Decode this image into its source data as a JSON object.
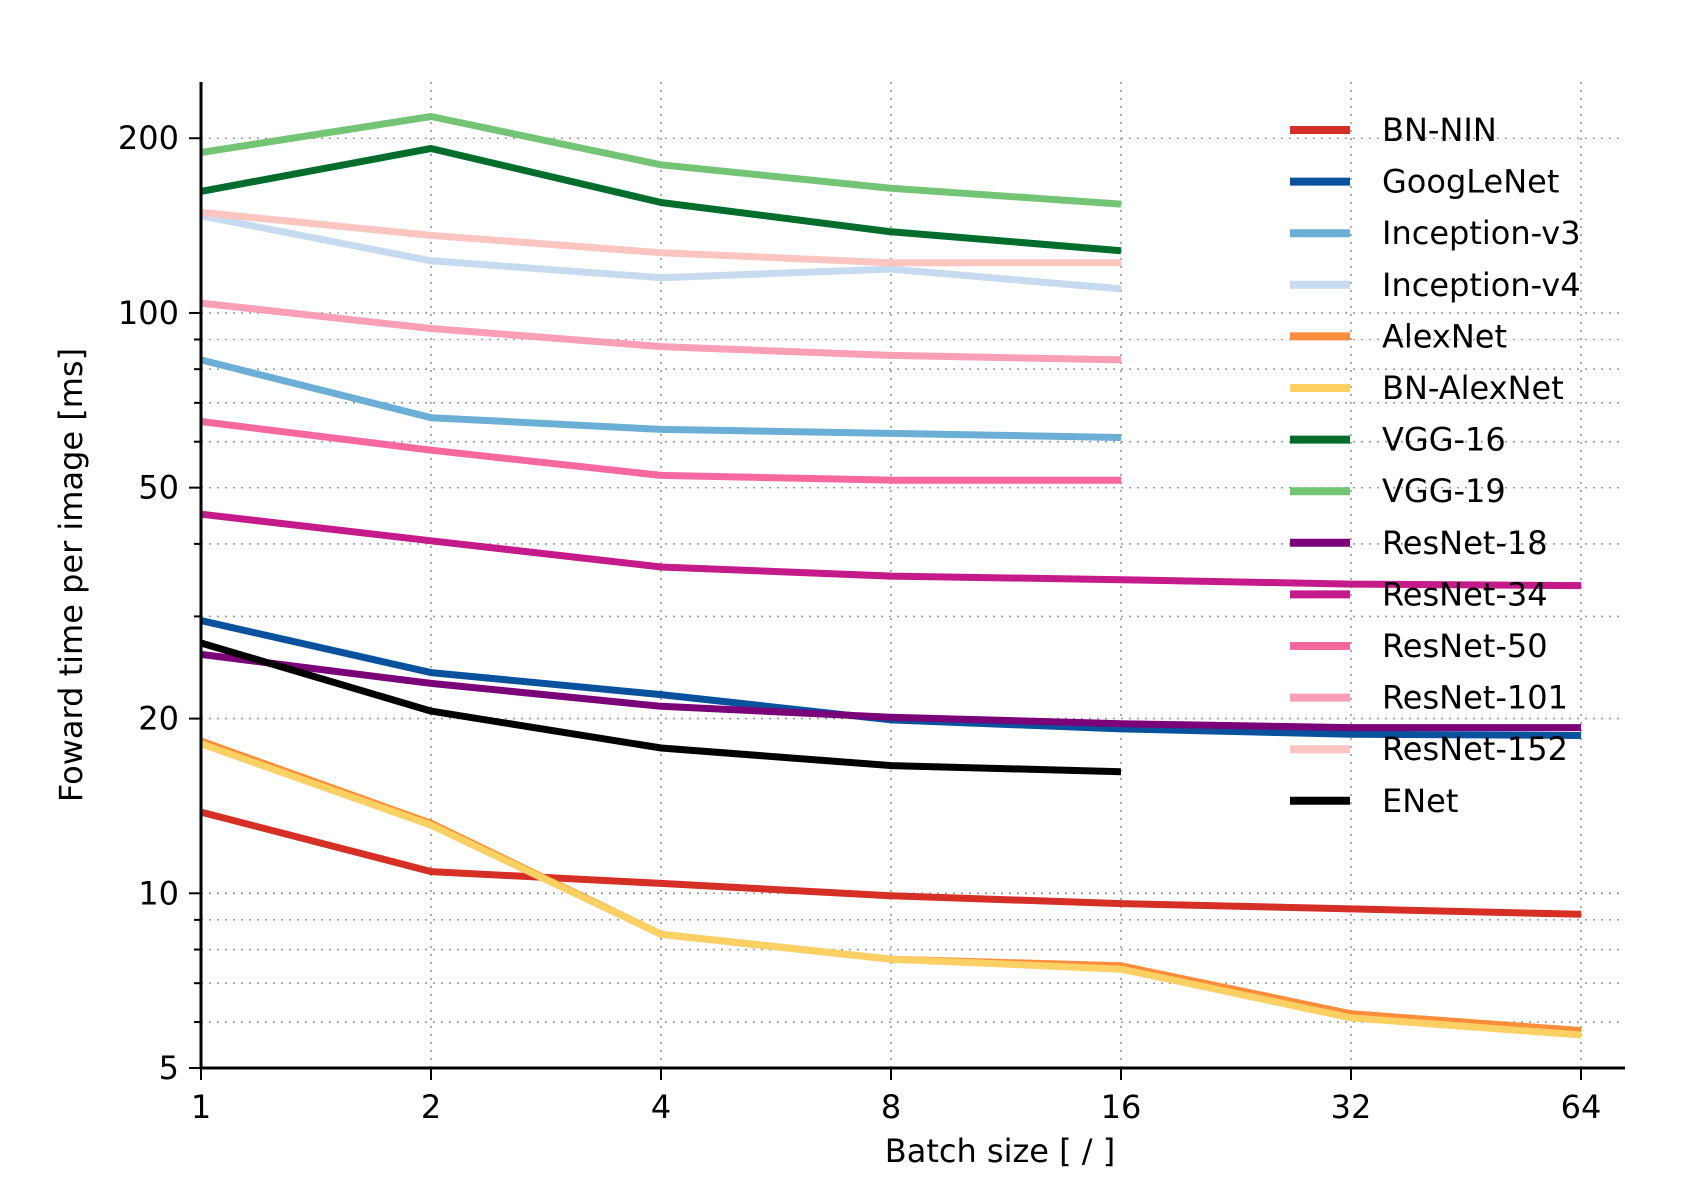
{
  "chart_data": {
    "type": "line",
    "title": "",
    "xlabel": "Batch size [ / ]",
    "ylabel": "Foward time per image [ms]",
    "x_scale": "log2",
    "y_scale": "log",
    "xlim": [
      1,
      90
    ],
    "ylim": [
      5,
      250
    ],
    "x_ticks": [
      1,
      2,
      4,
      8,
      16,
      32,
      64
    ],
    "x_tick_labels": [
      "1",
      "2",
      "4",
      "8",
      "16",
      "32",
      "64"
    ],
    "y_ticks": [
      5,
      10,
      20,
      50,
      100,
      200
    ],
    "y_tick_labels": [
      "5",
      "10",
      "20",
      "50",
      "100",
      "200"
    ],
    "grid": true,
    "legend_position": "top-right",
    "series": [
      {
        "name": "BN-NIN",
        "color": "#d62f26",
        "x": [
          1,
          2,
          4,
          8,
          16,
          32,
          64
        ],
        "y": [
          13.8,
          10.9,
          10.4,
          9.9,
          9.6,
          9.4,
          9.2
        ]
      },
      {
        "name": "GoogLeNet",
        "color": "#08519c",
        "x": [
          1,
          2,
          4,
          8,
          16,
          32,
          64
        ],
        "y": [
          29.5,
          24.0,
          22.0,
          19.9,
          19.2,
          18.8,
          18.7
        ]
      },
      {
        "name": "Inception-v3",
        "color": "#6baed6",
        "x": [
          1,
          2,
          4,
          8,
          16
        ],
        "y": [
          83,
          66,
          63,
          62,
          61
        ]
      },
      {
        "name": "Inception-v4",
        "color": "#c6dbef",
        "x": [
          1,
          2,
          4,
          8,
          16
        ],
        "y": [
          147,
          123,
          115,
          119,
          110
        ]
      },
      {
        "name": "AlexNet",
        "color": "#fd8d3c",
        "x": [
          1,
          2,
          4,
          8,
          16,
          32,
          64
        ],
        "y": [
          18.3,
          13.2,
          8.5,
          7.7,
          7.5,
          6.2,
          5.8
        ]
      },
      {
        "name": "BN-AlexNet",
        "color": "#fdd064",
        "x": [
          1,
          2,
          4,
          8,
          16,
          32,
          64
        ],
        "y": [
          18.1,
          13.1,
          8.5,
          7.7,
          7.4,
          6.1,
          5.7
        ]
      },
      {
        "name": "VGG-16",
        "color": "#006d2c",
        "x": [
          1,
          2,
          4,
          8,
          16
        ],
        "y": [
          162,
          192,
          155,
          138,
          128
        ]
      },
      {
        "name": "VGG-19",
        "color": "#74c476",
        "x": [
          1,
          2,
          4,
          8,
          16
        ],
        "y": [
          189,
          218,
          180,
          164,
          154
        ]
      },
      {
        "name": "ResNet-18",
        "color": "#7a0177",
        "x": [
          1,
          2,
          4,
          8,
          16,
          32,
          64
        ],
        "y": [
          25.8,
          23.0,
          21.0,
          20.1,
          19.6,
          19.3,
          19.3
        ]
      },
      {
        "name": "ResNet-34",
        "color": "#c51b8a",
        "x": [
          1,
          2,
          4,
          8,
          16,
          32,
          64
        ],
        "y": [
          45,
          40.5,
          36.5,
          35.2,
          34.7,
          34.1,
          33.9
        ]
      },
      {
        "name": "ResNet-50",
        "color": "#f768a1",
        "x": [
          1,
          2,
          4,
          8,
          16
        ],
        "y": [
          65,
          58,
          52.5,
          51.5,
          51.5
        ]
      },
      {
        "name": "ResNet-101",
        "color": "#fa9fb5",
        "x": [
          1,
          2,
          4,
          8,
          16
        ],
        "y": [
          104,
          94,
          87.5,
          84.5,
          83
        ]
      },
      {
        "name": "ResNet-152",
        "color": "#fcc5c0",
        "x": [
          1,
          2,
          4,
          8,
          16
        ],
        "y": [
          149,
          136,
          127,
          122,
          122
        ]
      },
      {
        "name": "ENet",
        "color": "#000000",
        "x": [
          1,
          2,
          4,
          8,
          16
        ],
        "y": [
          27,
          20.6,
          17.8,
          16.6,
          16.2
        ]
      }
    ]
  }
}
